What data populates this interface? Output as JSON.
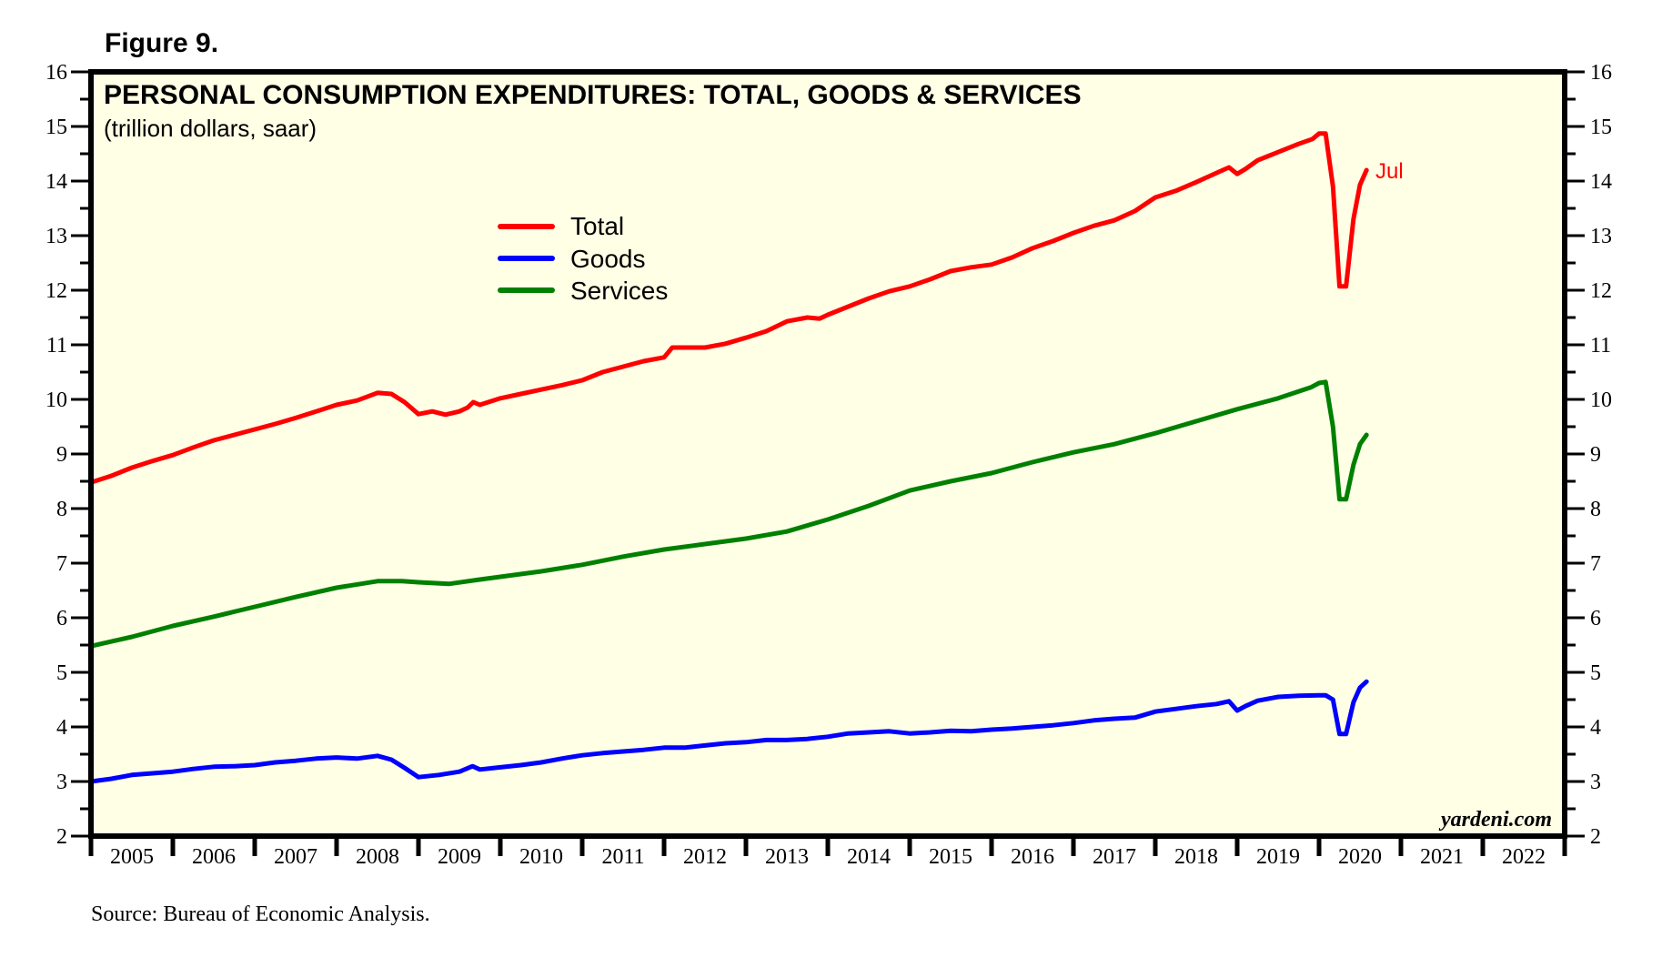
{
  "figure_label": "Figure 9.",
  "source": "Source: Bureau of Economic Analysis.",
  "watermark": "yardeni.com",
  "chart_data": {
    "type": "line",
    "title": "PERSONAL CONSUMPTION EXPENDITURES: TOTAL, GOODS & SERVICES",
    "subtitle": "(trillion dollars, saar)",
    "xlabel": "",
    "ylabel": "",
    "xlim": [
      2005,
      2023
    ],
    "ylim": [
      2,
      16
    ],
    "y_ticks": [
      2,
      3,
      4,
      5,
      6,
      7,
      8,
      9,
      10,
      11,
      12,
      13,
      14,
      15,
      16
    ],
    "x_tick_labels": [
      "2005",
      "2006",
      "2007",
      "2008",
      "2009",
      "2010",
      "2011",
      "2012",
      "2013",
      "2014",
      "2015",
      "2016",
      "2017",
      "2018",
      "2019",
      "2020",
      "2021",
      "2022"
    ],
    "grid": false,
    "legend_position": "upper-left-center",
    "end_annotation": {
      "text": "Jul",
      "series": "Total"
    },
    "series": [
      {
        "name": "Total",
        "color": "#FF0000",
        "x": [
          2005.0,
          2005.25,
          2005.5,
          2005.75,
          2006.0,
          2006.25,
          2006.5,
          2006.75,
          2007.0,
          2007.25,
          2007.5,
          2007.75,
          2008.0,
          2008.25,
          2008.5,
          2008.67,
          2008.83,
          2009.0,
          2009.17,
          2009.33,
          2009.5,
          2009.6,
          2009.67,
          2009.75,
          2010.0,
          2010.25,
          2010.5,
          2010.75,
          2011.0,
          2011.25,
          2011.5,
          2011.75,
          2012.0,
          2012.1,
          2012.2,
          2012.5,
          2012.75,
          2013.0,
          2013.25,
          2013.5,
          2013.75,
          2013.9,
          2014.0,
          2014.25,
          2014.5,
          2014.75,
          2015.0,
          2015.25,
          2015.5,
          2015.75,
          2016.0,
          2016.25,
          2016.5,
          2016.75,
          2017.0,
          2017.25,
          2017.5,
          2017.75,
          2018.0,
          2018.25,
          2018.5,
          2018.75,
          2018.9,
          2019.0,
          2019.1,
          2019.25,
          2019.5,
          2019.75,
          2019.92,
          2020.0,
          2020.08,
          2020.17,
          2020.25,
          2020.33,
          2020.42,
          2020.5,
          2020.58
        ],
        "values": [
          8.48,
          8.6,
          8.75,
          8.87,
          8.98,
          9.12,
          9.25,
          9.35,
          9.45,
          9.55,
          9.66,
          9.78,
          9.9,
          9.98,
          10.12,
          10.1,
          9.95,
          9.73,
          9.78,
          9.72,
          9.78,
          9.85,
          9.95,
          9.9,
          10.02,
          10.1,
          10.18,
          10.26,
          10.35,
          10.5,
          10.6,
          10.7,
          10.77,
          10.95,
          10.95,
          10.95,
          11.02,
          11.13,
          11.25,
          11.43,
          11.5,
          11.48,
          11.55,
          11.7,
          11.85,
          11.98,
          12.07,
          12.2,
          12.35,
          12.42,
          12.47,
          12.6,
          12.77,
          12.9,
          13.05,
          13.18,
          13.28,
          13.45,
          13.7,
          13.82,
          13.98,
          14.15,
          14.25,
          14.13,
          14.22,
          14.38,
          14.53,
          14.68,
          14.77,
          14.87,
          14.87,
          13.9,
          12.07,
          12.07,
          13.3,
          13.93,
          14.2
        ]
      },
      {
        "name": "Goods",
        "color": "#0000FF",
        "x": [
          2005.0,
          2005.25,
          2005.5,
          2005.75,
          2006.0,
          2006.25,
          2006.5,
          2006.75,
          2007.0,
          2007.25,
          2007.5,
          2007.75,
          2008.0,
          2008.25,
          2008.5,
          2008.67,
          2008.83,
          2009.0,
          2009.25,
          2009.5,
          2009.66,
          2009.75,
          2010.0,
          2010.25,
          2010.5,
          2010.75,
          2011.0,
          2011.25,
          2011.5,
          2011.75,
          2012.0,
          2012.25,
          2012.5,
          2012.75,
          2013.0,
          2013.25,
          2013.5,
          2013.75,
          2014.0,
          2014.25,
          2014.5,
          2014.75,
          2015.0,
          2015.25,
          2015.5,
          2015.75,
          2016.0,
          2016.25,
          2016.5,
          2016.75,
          2017.0,
          2017.25,
          2017.5,
          2017.75,
          2018.0,
          2018.25,
          2018.5,
          2018.75,
          2018.9,
          2019.0,
          2019.1,
          2019.25,
          2019.5,
          2019.75,
          2020.0,
          2020.08,
          2020.17,
          2020.25,
          2020.33,
          2020.42,
          2020.5,
          2020.58
        ],
        "values": [
          3.0,
          3.05,
          3.12,
          3.15,
          3.18,
          3.23,
          3.27,
          3.28,
          3.3,
          3.35,
          3.38,
          3.42,
          3.44,
          3.42,
          3.47,
          3.4,
          3.25,
          3.08,
          3.12,
          3.18,
          3.28,
          3.22,
          3.26,
          3.3,
          3.35,
          3.42,
          3.48,
          3.52,
          3.55,
          3.58,
          3.62,
          3.62,
          3.66,
          3.7,
          3.72,
          3.76,
          3.76,
          3.78,
          3.82,
          3.88,
          3.9,
          3.92,
          3.88,
          3.9,
          3.93,
          3.92,
          3.95,
          3.97,
          4.0,
          4.03,
          4.07,
          4.12,
          4.15,
          4.17,
          4.28,
          4.33,
          4.38,
          4.42,
          4.47,
          4.3,
          4.38,
          4.48,
          4.55,
          4.57,
          4.58,
          4.58,
          4.5,
          3.87,
          3.87,
          4.45,
          4.72,
          4.83
        ]
      },
      {
        "name": "Services",
        "color": "#008000",
        "x": [
          2005.0,
          2005.5,
          2006.0,
          2006.5,
          2007.0,
          2007.5,
          2008.0,
          2008.5,
          2008.8,
          2009.0,
          2009.37,
          2009.75,
          2010.0,
          2010.5,
          2011.0,
          2011.5,
          2012.0,
          2012.5,
          2013.0,
          2013.5,
          2014.0,
          2014.5,
          2015.0,
          2015.5,
          2016.0,
          2016.5,
          2017.0,
          2017.5,
          2018.0,
          2018.5,
          2019.0,
          2019.5,
          2019.9,
          2020.0,
          2020.08,
          2020.17,
          2020.25,
          2020.33,
          2020.42,
          2020.5,
          2020.58
        ],
        "values": [
          5.48,
          5.65,
          5.85,
          6.02,
          6.2,
          6.38,
          6.55,
          6.67,
          6.67,
          6.65,
          6.62,
          6.7,
          6.75,
          6.85,
          6.97,
          7.12,
          7.25,
          7.35,
          7.45,
          7.58,
          7.8,
          8.05,
          8.33,
          8.5,
          8.65,
          8.85,
          9.03,
          9.18,
          9.38,
          9.6,
          9.82,
          10.02,
          10.22,
          10.3,
          10.32,
          9.5,
          8.17,
          8.17,
          8.8,
          9.18,
          9.35
        ]
      }
    ]
  }
}
